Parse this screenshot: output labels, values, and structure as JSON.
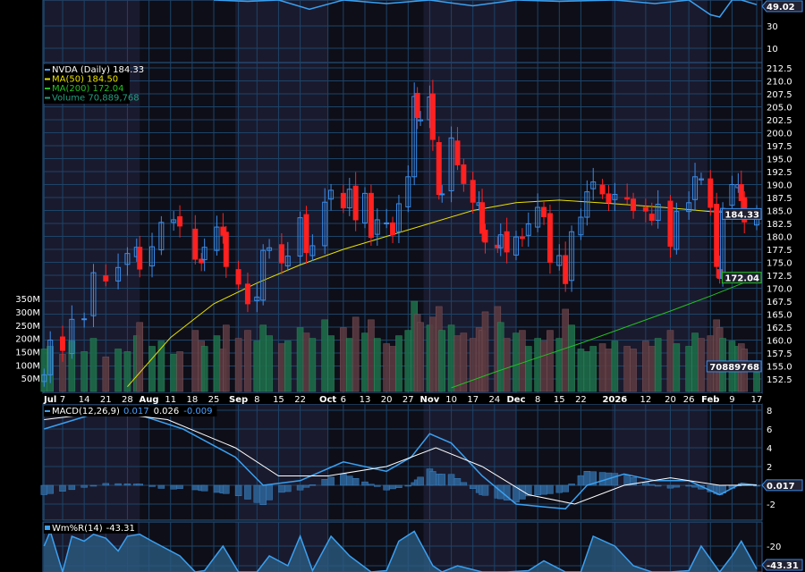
{
  "chart_data": [
    {
      "type": "candlestick",
      "title": "NVDA (Daily) 184.33",
      "legend": [
        {
          "label": "NVDA (Daily) 184.33",
          "color": "#ffffff"
        },
        {
          "label": "MA(50) 184.50",
          "color": "#e8e000"
        },
        {
          "label": "MA(200) 172.04",
          "color": "#22c022"
        },
        {
          "label": "Volume 70,889,768",
          "color": "#22a080"
        }
      ],
      "ylim": [
        152.5,
        212.5
      ],
      "y_ticks": [
        "212.5",
        "210.0",
        "207.5",
        "205.0",
        "202.5",
        "200.0",
        "197.5",
        "195.0",
        "192.5",
        "190.0",
        "187.5",
        "185.0",
        "182.5",
        "180.0",
        "177.5",
        "175.0",
        "172.5",
        "170.0",
        "167.5",
        "165.0",
        "162.5",
        "160.0",
        "157.5",
        "155.0",
        "152.5"
      ],
      "volume_ticks": [
        "350M",
        "300M",
        "250M",
        "200M",
        "150M",
        "100M",
        "50M"
      ],
      "x_ticks": [
        {
          "label": "Jul",
          "date": "2025-07-01",
          "bold": true
        },
        {
          "label": "7",
          "date": "2025-07-07"
        },
        {
          "label": "14",
          "date": "2025-07-14"
        },
        {
          "label": "21",
          "date": "2025-07-21"
        },
        {
          "label": "28",
          "date": "2025-07-28"
        },
        {
          "label": "Aug",
          "date": "2025-08-04",
          "bold": true
        },
        {
          "label": "11",
          "date": "2025-08-11"
        },
        {
          "label": "18",
          "date": "2025-08-18"
        },
        {
          "label": "25",
          "date": "2025-08-25"
        },
        {
          "label": "Sep",
          "date": "2025-09-02",
          "bold": true
        },
        {
          "label": "8",
          "date": "2025-09-08"
        },
        {
          "label": "15",
          "date": "2025-09-15"
        },
        {
          "label": "22",
          "date": "2025-09-22"
        },
        {
          "label": "Oct",
          "date": "2025-10-01",
          "bold": true
        },
        {
          "label": "6",
          "date": "2025-10-06"
        },
        {
          "label": "13",
          "date": "2025-10-13"
        },
        {
          "label": "20",
          "date": "2025-10-20"
        },
        {
          "label": "27",
          "date": "2025-10-27"
        },
        {
          "label": "Nov",
          "date": "2025-11-03",
          "bold": true
        },
        {
          "label": "10",
          "date": "2025-11-10"
        },
        {
          "label": "17",
          "date": "2025-11-17"
        },
        {
          "label": "24",
          "date": "2025-11-24"
        },
        {
          "label": "Dec",
          "date": "2025-12-01",
          "bold": true
        },
        {
          "label": "8",
          "date": "2025-12-08"
        },
        {
          "label": "15",
          "date": "2025-12-15"
        },
        {
          "label": "22",
          "date": "2025-12-22"
        },
        {
          "label": "2026",
          "date": "2026-01-02",
          "bold": true
        },
        {
          "label": "12",
          "date": "2026-01-12"
        },
        {
          "label": "20",
          "date": "2026-01-20"
        },
        {
          "label": "26",
          "date": "2026-01-26"
        },
        {
          "label": "Feb",
          "date": "2026-02-02",
          "bold": true
        },
        {
          "label": "9",
          "date": "2026-02-09"
        },
        {
          "label": "17",
          "date": "2026-02-17"
        }
      ],
      "dates": [
        "2025-07-01",
        "2025-07-03",
        "2025-07-07",
        "2025-07-10",
        "2025-07-14",
        "2025-07-17",
        "2025-07-21",
        "2025-07-25",
        "2025-07-28",
        "2025-07-31",
        "2025-08-01",
        "2025-08-05",
        "2025-08-08",
        "2025-08-12",
        "2025-08-14",
        "2025-08-19",
        "2025-08-21",
        "2025-08-22",
        "2025-08-26",
        "2025-08-28",
        "2025-08-29",
        "2025-09-02",
        "2025-09-05",
        "2025-09-08",
        "2025-09-10",
        "2025-09-12",
        "2025-09-16",
        "2025-09-18",
        "2025-09-22",
        "2025-09-24",
        "2025-09-26",
        "2025-09-30",
        "2025-10-02",
        "2025-10-06",
        "2025-10-08",
        "2025-10-10",
        "2025-10-13",
        "2025-10-15",
        "2025-10-17",
        "2025-10-20",
        "2025-10-22",
        "2025-10-24",
        "2025-10-27",
        "2025-10-29",
        "2025-10-30",
        "2025-10-31",
        "2025-11-03",
        "2025-11-04",
        "2025-11-06",
        "2025-11-07",
        "2025-11-10",
        "2025-11-12",
        "2025-11-14",
        "2025-11-17",
        "2025-11-19",
        "2025-11-20",
        "2025-11-21",
        "2025-11-25",
        "2025-11-26",
        "2025-11-28",
        "2025-12-01",
        "2025-12-03",
        "2025-12-05",
        "2025-12-08",
        "2025-12-10",
        "2025-12-12",
        "2025-12-15",
        "2025-12-17",
        "2025-12-19",
        "2025-12-22",
        "2025-12-24",
        "2025-12-26",
        "2025-12-29",
        "2025-12-31",
        "2026-01-02",
        "2026-01-06",
        "2026-01-08",
        "2026-01-12",
        "2026-01-14",
        "2026-01-16",
        "2026-01-20",
        "2026-01-22",
        "2026-01-26",
        "2026-01-28",
        "2026-01-30",
        "2026-02-02",
        "2026-02-04",
        "2026-02-05",
        "2026-02-06",
        "2026-02-09",
        "2026-02-11",
        "2026-02-12",
        "2026-02-13",
        "2026-02-17"
      ],
      "close": [
        153.3,
        160.0,
        158.0,
        164.0,
        164.1,
        173.0,
        171.4,
        174.0,
        176.7,
        177.9,
        173.7,
        178.0,
        182.7,
        183.2,
        182.0,
        175.6,
        174.9,
        177.9,
        181.8,
        180.2,
        174.2,
        170.8,
        167.0,
        168.3,
        177.3,
        177.8,
        174.9,
        176.2,
        183.6,
        176.9,
        178.2,
        186.6,
        188.9,
        185.5,
        189.1,
        183.2,
        188.3,
        179.8,
        183.2,
        182.6,
        180.3,
        186.3,
        191.5,
        207.0,
        202.9,
        202.5,
        206.9,
        198.7,
        188.1,
        188.2,
        199.0,
        193.8,
        190.2,
        186.6,
        186.5,
        180.6,
        178.9,
        177.8,
        180.3,
        177.0,
        179.9,
        179.6,
        182.4,
        185.6,
        183.8,
        175.0,
        176.3,
        170.9,
        180.9,
        183.7,
        188.6,
        190.5,
        188.2,
        186.5,
        188.1,
        187.2,
        185.0,
        184.9,
        183.1,
        186.2,
        178.1,
        184.8,
        186.5,
        191.5,
        191.1,
        185.6,
        174.2,
        171.9,
        185.4,
        190.0,
        190.0,
        186.9,
        182.8,
        184.33
      ],
      "volume_m": [
        160,
        170,
        140,
        190,
        150,
        200,
        130,
        160,
        150,
        210,
        260,
        170,
        190,
        140,
        150,
        230,
        190,
        170,
        210,
        160,
        250,
        200,
        230,
        190,
        250,
        210,
        180,
        190,
        240,
        220,
        200,
        270,
        210,
        240,
        200,
        280,
        220,
        270,
        200,
        180,
        170,
        210,
        230,
        340,
        290,
        260,
        250,
        280,
        320,
        230,
        250,
        210,
        220,
        200,
        240,
        230,
        300,
        320,
        260,
        200,
        220,
        230,
        170,
        200,
        190,
        230,
        200,
        310,
        250,
        160,
        150,
        170,
        180,
        160,
        190,
        170,
        160,
        190,
        170,
        200,
        230,
        180,
        170,
        220,
        200,
        210,
        270,
        240,
        200,
        190,
        170,
        180,
        160,
        71
      ],
      "ma50": {
        "dates": [
          "2025-07-28",
          "2025-08-11",
          "2025-08-25",
          "2025-09-08",
          "2025-09-22",
          "2025-10-06",
          "2025-10-20",
          "2025-11-03",
          "2025-11-17",
          "2025-12-01",
          "2025-12-15",
          "2026-01-02",
          "2026-01-20",
          "2026-02-02",
          "2026-02-17"
        ],
        "values": [
          151.0,
          160.5,
          167.0,
          171.0,
          174.5,
          177.5,
          180.0,
          182.5,
          185.0,
          186.5,
          187.0,
          186.3,
          185.5,
          184.8,
          184.5
        ]
      },
      "ma200": {
        "dates": [
          "2025-11-10",
          "2025-11-24",
          "2025-12-08",
          "2025-12-22",
          "2026-01-05",
          "2026-01-20",
          "2026-02-02",
          "2026-02-17"
        ],
        "values": [
          150.8,
          153.8,
          156.6,
          159.4,
          162.4,
          165.6,
          168.5,
          172.04
        ]
      },
      "last_price": "184.33",
      "last_ma200": "172.04",
      "last_volume": "70889768"
    },
    {
      "type": "line",
      "title": "MACD(12,26,9)",
      "legend_values": [
        "0.017",
        "0.026",
        "-0.009"
      ],
      "y_ticks": [
        "8",
        "6",
        "4",
        "2",
        "0.017",
        "-2"
      ],
      "macd": {
        "dates": [
          "2025-07-01",
          "2025-07-21",
          "2025-08-01",
          "2025-08-15",
          "2025-09-01",
          "2025-09-10",
          "2025-09-22",
          "2025-10-06",
          "2025-10-20",
          "2025-10-28",
          "2025-11-03",
          "2025-11-10",
          "2025-11-20",
          "2025-12-01",
          "2025-12-10",
          "2025-12-17",
          "2025-12-24",
          "2026-01-05",
          "2026-01-15",
          "2026-01-26",
          "2026-02-05",
          "2026-02-12",
          "2026-02-17"
        ],
        "values": [
          6.0,
          8.0,
          7.5,
          6.0,
          3.0,
          0.0,
          0.5,
          2.5,
          1.5,
          3.0,
          5.5,
          4.5,
          1.0,
          -2.0,
          -2.3,
          -2.5,
          0.0,
          1.2,
          0.5,
          0.5,
          -1.0,
          0.2,
          0.017
        ]
      },
      "signal": {
        "dates": [
          "2025-07-01",
          "2025-07-21",
          "2025-08-10",
          "2025-09-01",
          "2025-09-15",
          "2025-10-01",
          "2025-10-20",
          "2025-11-05",
          "2025-11-20",
          "2025-12-05",
          "2025-12-20",
          "2026-01-05",
          "2026-01-20",
          "2026-02-05",
          "2026-02-17"
        ],
        "values": [
          7.0,
          7.8,
          7.0,
          4.0,
          1.0,
          1.0,
          2.0,
          4.0,
          2.0,
          -1.0,
          -2.0,
          0.0,
          0.8,
          0.0,
          0.026
        ]
      }
    },
    {
      "type": "area",
      "title": "Wm%R(14)",
      "legend_value": "-43.31",
      "y_ticks": [
        "-20",
        "-43.31"
      ],
      "dates": [
        "2025-07-01",
        "2025-07-03",
        "2025-07-07",
        "2025-07-10",
        "2025-07-14",
        "2025-07-17",
        "2025-07-21",
        "2025-07-25",
        "2025-07-28",
        "2025-08-01",
        "2025-08-05",
        "2025-08-08",
        "2025-08-14",
        "2025-08-19",
        "2025-08-22",
        "2025-08-28",
        "2025-09-02",
        "2025-09-08",
        "2025-09-12",
        "2025-09-18",
        "2025-09-22",
        "2025-09-26",
        "2025-10-02",
        "2025-10-08",
        "2025-10-15",
        "2025-10-20",
        "2025-10-24",
        "2025-10-29",
        "2025-11-04",
        "2025-11-07",
        "2025-11-12",
        "2025-11-20",
        "2025-11-28",
        "2025-12-05",
        "2025-12-10",
        "2025-12-17",
        "2025-12-22",
        "2025-12-26",
        "2026-01-02",
        "2026-01-08",
        "2026-01-14",
        "2026-01-20",
        "2026-01-26",
        "2026-01-30",
        "2026-02-05",
        "2026-02-09",
        "2026-02-12",
        "2026-02-17"
      ],
      "values": [
        -20,
        -5,
        -50,
        -10,
        -15,
        -8,
        -12,
        -25,
        -10,
        -8,
        -15,
        -20,
        -30,
        -60,
        -45,
        -20,
        -50,
        -90,
        -30,
        -40,
        -10,
        -45,
        -10,
        -30,
        -60,
        -45,
        -15,
        -5,
        -40,
        -95,
        -40,
        -60,
        -80,
        -45,
        -35,
        -90,
        -50,
        -10,
        -20,
        -40,
        -55,
        -85,
        -45,
        -20,
        -95,
        -30,
        -15,
        -43.31
      ]
    },
    {
      "type": "line",
      "title": "",
      "y_ticks": [
        "49.02",
        "30",
        "10"
      ],
      "dates": [
        "2025-08-25",
        "2025-09-05",
        "2025-09-15",
        "2025-09-25",
        "2025-10-06",
        "2025-10-20",
        "2025-11-03",
        "2025-11-17",
        "2025-12-01",
        "2025-12-15",
        "2026-01-02",
        "2026-01-15",
        "2026-01-26",
        "2026-02-02",
        "2026-02-05",
        "2026-02-09",
        "2026-02-12",
        "2026-02-17"
      ],
      "values": [
        60,
        52,
        58,
        45,
        55,
        50,
        60,
        48,
        55,
        52,
        58,
        50,
        56,
        40,
        38,
        60,
        58,
        49.02
      ]
    }
  ],
  "colors": {
    "up": "#3a8be8",
    "down": "#ff2020",
    "ma50": "#e8e000",
    "ma200": "#22c022",
    "vol_up": "#1d6a48",
    "vol_down": "#5a3a40",
    "macd": "#3aa0f0",
    "signal": "#ffffff",
    "grid": "#1c4468",
    "bg": "#0e0e18",
    "bg_alt": "#1a1a2e"
  }
}
